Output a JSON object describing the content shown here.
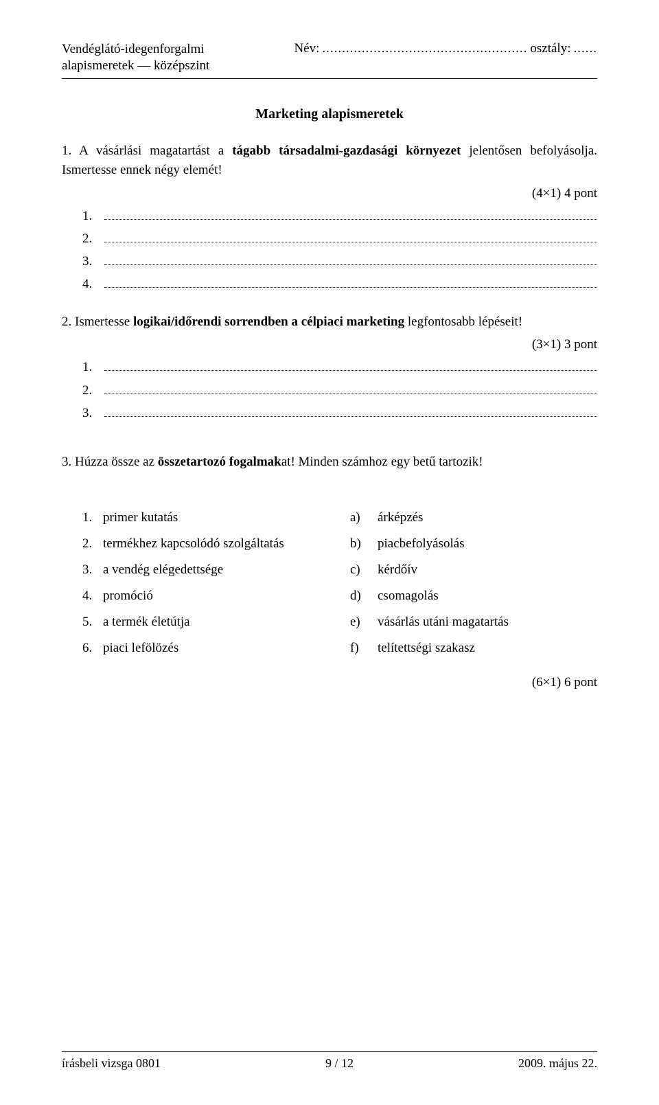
{
  "header": {
    "subject_line1": "Vendéglátó-idegenforgalmi",
    "subject_line2": "alapismeretek — középszint",
    "name_label": "Név:",
    "name_dots": "....................................................",
    "class_label": "osztály:",
    "class_dots": "......"
  },
  "title": "Marketing alapismeretek",
  "q1": {
    "num": "1.",
    "text_part1": " A vásárlási magatartást a ",
    "bold": "tágabb társadalmi-gazdasági környezet",
    "text_part2": " jelentősen befolyásolja. Ismertesse ennek négy elemét!",
    "points": "(4×1) 4 pont",
    "answers": [
      "1.",
      "2.",
      "3.",
      "4."
    ]
  },
  "q2": {
    "num": "2.",
    "text_part1": " Ismertesse ",
    "bold": "logikai/időrendi sorrendben a célpiaci marketing",
    "text_part2": " legfontosabb lépéseit!",
    "points": "(3×1) 3 pont",
    "answers": [
      "1.",
      "2.",
      "3."
    ]
  },
  "q3": {
    "num": "3.",
    "text_part1": " Húzza össze az ",
    "bold": "összetartozó fogalmak",
    "text_part2": "at! Minden számhoz egy betű tartozik!",
    "left": [
      {
        "n": "1.",
        "t": "primer kutatás"
      },
      {
        "n": "2.",
        "t": "termékhez kapcsolódó szolgáltatás"
      },
      {
        "n": "3.",
        "t": "a vendég elégedettsége"
      },
      {
        "n": "4.",
        "t": "promóció"
      },
      {
        "n": "5.",
        "t": "a termék életútja"
      },
      {
        "n": "6.",
        "t": "piaci lefölözés"
      }
    ],
    "right": [
      {
        "l": "a)",
        "t": "árképzés"
      },
      {
        "l": "b)",
        "t": "piacbefolyásolás"
      },
      {
        "l": "c)",
        "t": "kérdőív"
      },
      {
        "l": "d)",
        "t": "csomagolás"
      },
      {
        "l": "e)",
        "t": "vásárlás utáni magatartás"
      },
      {
        "l": "f)",
        "t": "telítettségi szakasz"
      }
    ],
    "points": "(6×1) 6 pont"
  },
  "footer": {
    "left": "írásbeli vizsga 0801",
    "center": "9 / 12",
    "right": "2009. május 22."
  }
}
